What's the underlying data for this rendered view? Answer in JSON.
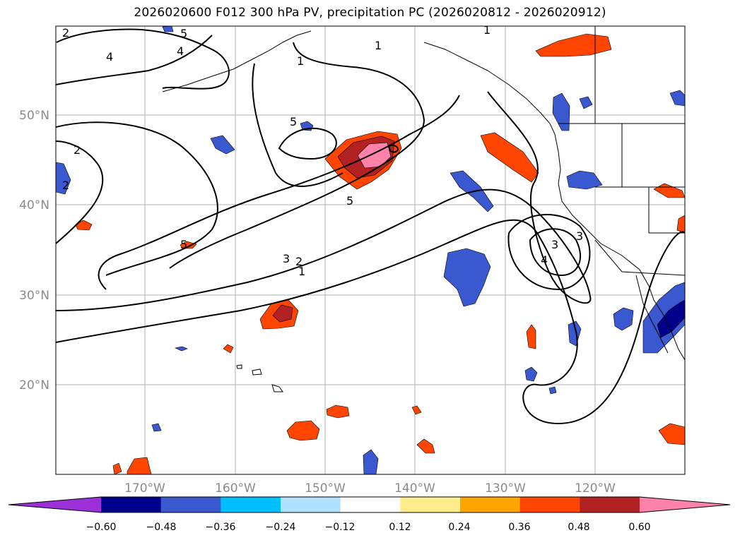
{
  "title": "2026020600 F012 300 hPa PV, precipitation PC (2026020812 - 2026020912)",
  "map": {
    "lat_labels": [
      "50°N",
      "40°N",
      "30°N",
      "20°N"
    ],
    "lon_labels": [
      "170°W",
      "160°W",
      "150°W",
      "140°W",
      "130°W",
      "120°W"
    ],
    "pv_contour_labels": [
      "2",
      "3",
      "4",
      "5",
      "1",
      "1",
      "1",
      "5",
      "2",
      "5",
      "4",
      "3",
      "2",
      "1",
      "5",
      "4",
      "3",
      "2"
    ]
  },
  "colorbar": {
    "ticks": [
      "−0.60",
      "−0.48",
      "−0.36",
      "−0.24",
      "−0.12",
      "0.12",
      "0.24",
      "0.36",
      "0.48",
      "0.60"
    ],
    "colors": [
      "#9b30d9",
      "#00008b",
      "#3a58cf",
      "#00bfff",
      "#b0e2ff",
      "#ffffff",
      "#ffec8b",
      "#ffa500",
      "#ff4500",
      "#b22222",
      "#ff82ab"
    ]
  }
}
